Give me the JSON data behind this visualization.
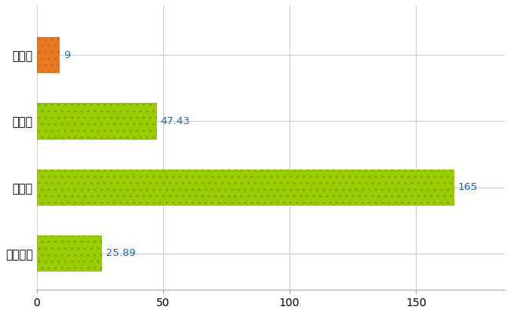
{
  "categories": [
    "寒川町",
    "県平均",
    "県最大",
    "全国平均"
  ],
  "values": [
    9,
    47.43,
    165,
    25.89
  ],
  "bar_colors": [
    "#e87820",
    "#9acd00",
    "#9acd00",
    "#9acd00"
  ],
  "hatch_colors": [
    "#e06010",
    "#7aaa00",
    "#7aaa00",
    "#7aaa00"
  ],
  "bar_labels": [
    "9",
    "47.43",
    "165",
    "25.89"
  ],
  "xlim": [
    0,
    185
  ],
  "xticks": [
    0,
    50,
    100,
    150
  ],
  "background_color": "#ffffff",
  "grid_color": "#cccccc",
  "bar_height": 0.55,
  "figsize": [
    6.5,
    4.0
  ],
  "dpi": 100,
  "label_fontsize": 10.5,
  "tick_fontsize": 10,
  "value_fontsize": 9.5,
  "value_color": "#1a6ab5"
}
